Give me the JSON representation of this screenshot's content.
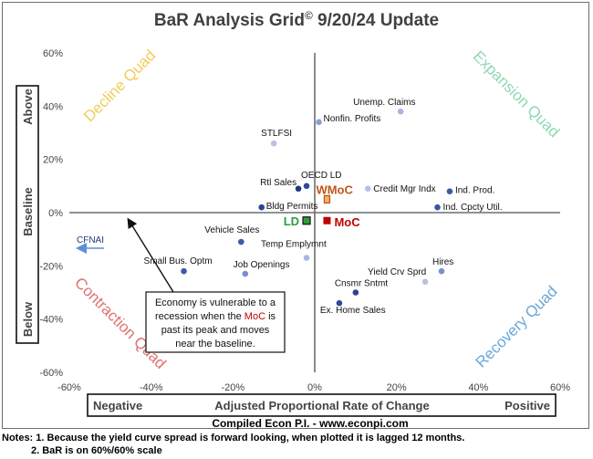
{
  "chart_data": {
    "type": "scatter",
    "title": "BaR Analysis Grid",
    "title_symbol": "©",
    "title_suffix": "9/20/24 Update",
    "xlim": [
      -60,
      60
    ],
    "ylim": [
      -60,
      60
    ],
    "x_ticks": [
      "-60%",
      "-40%",
      "-20%",
      "0%",
      "20%",
      "40%",
      "60%"
    ],
    "y_ticks": [
      "60%",
      "40%",
      "20%",
      "0%",
      "-20%",
      "-40%",
      "-60%"
    ],
    "xlabel": "Adjusted Proportional Rate of Change",
    "xlabel_left": "Negative",
    "xlabel_right": "Positive",
    "ylabel_top": "Above",
    "ylabel_mid": "Baseline",
    "ylabel_bottom": "Below",
    "quadrants": {
      "top_left": "Decline Quad",
      "top_right": "Expansion Quad",
      "bottom_left": "Contraction Quad",
      "bottom_right": "Recovery Quad"
    },
    "quadrant_colors": {
      "top_left": "#f2cc5c",
      "top_right": "#8ed8b0",
      "bottom_left": "#e07070",
      "bottom_right": "#6aa8d8"
    },
    "points": [
      {
        "label": "Unemp. Claims",
        "x": 21,
        "y": 38,
        "color": "#a9b6e0"
      },
      {
        "label": "Nonfin. Profits",
        "x": 1,
        "y": 34,
        "color": "#8a9fd6"
      },
      {
        "label": "STLFSI",
        "x": -10,
        "y": 26,
        "color": "#b9c2e4"
      },
      {
        "label": "OECD LD",
        "x": -2,
        "y": 10,
        "color": "#2f4a9a"
      },
      {
        "label": "Rtl Sales",
        "x": -4,
        "y": 9,
        "color": "#1f3a7a"
      },
      {
        "label": "Credit Mgr Indx",
        "x": 13,
        "y": 9,
        "color": "#b3c3e6"
      },
      {
        "label": "Ind. Prod.",
        "x": 33,
        "y": 8,
        "color": "#3d5aa8"
      },
      {
        "label": "Bldg Permits",
        "x": -13,
        "y": 2,
        "color": "#2b4590"
      },
      {
        "label": "Ind. Cpcty Util.",
        "x": 30,
        "y": 2,
        "color": "#3a56a0"
      },
      {
        "label": "Vehicle Sales",
        "x": -18,
        "y": -11,
        "color": "#3d5aa8"
      },
      {
        "label": "Temp Emplymnt",
        "x": -2,
        "y": -17,
        "color": "#a9b6e0"
      },
      {
        "label": "Small Bus. Optm",
        "x": -32,
        "y": -22,
        "color": "#3d5aa8"
      },
      {
        "label": "Job Openings",
        "x": -17,
        "y": -23,
        "color": "#7a8fcc"
      },
      {
        "label": "Hires",
        "x": 31,
        "y": -22,
        "color": "#7a8fcc"
      },
      {
        "label": "Yield Crv Sprd",
        "x": 27,
        "y": -26,
        "color": "#b9c2e4"
      },
      {
        "label": "Cnsmr Sntmt",
        "x": 10,
        "y": -30,
        "color": "#2b4590"
      },
      {
        "label": "Ex. Home Sales",
        "x": 6,
        "y": -34,
        "color": "#2f4a9a"
      }
    ],
    "special_points": [
      {
        "label": "WMoC",
        "x": 3,
        "y": 5,
        "color": "#c0561a"
      },
      {
        "label": "MoC",
        "x": 3,
        "y": -3,
        "color": "#c00000"
      },
      {
        "label": "LD",
        "x": -2,
        "y": -3,
        "color": "#2e9e3e"
      }
    ],
    "side_arrow_label": "CFNAI",
    "annotation": {
      "line1": "Economy is vulnerable to a",
      "line2_pre": "recession when the",
      "line2_key": "MoC",
      "line2_post": "is",
      "line3": "past its peak and moves",
      "line4": "near the baseline."
    },
    "credit": "Compiled Econ P.I. - www.econpi.com"
  },
  "notes": {
    "line1": "Notes: 1. Because the yield curve spread is forward looking, when plotted it is lagged 12 months.",
    "line2": "2. BaR is on 60%/60% scale"
  }
}
